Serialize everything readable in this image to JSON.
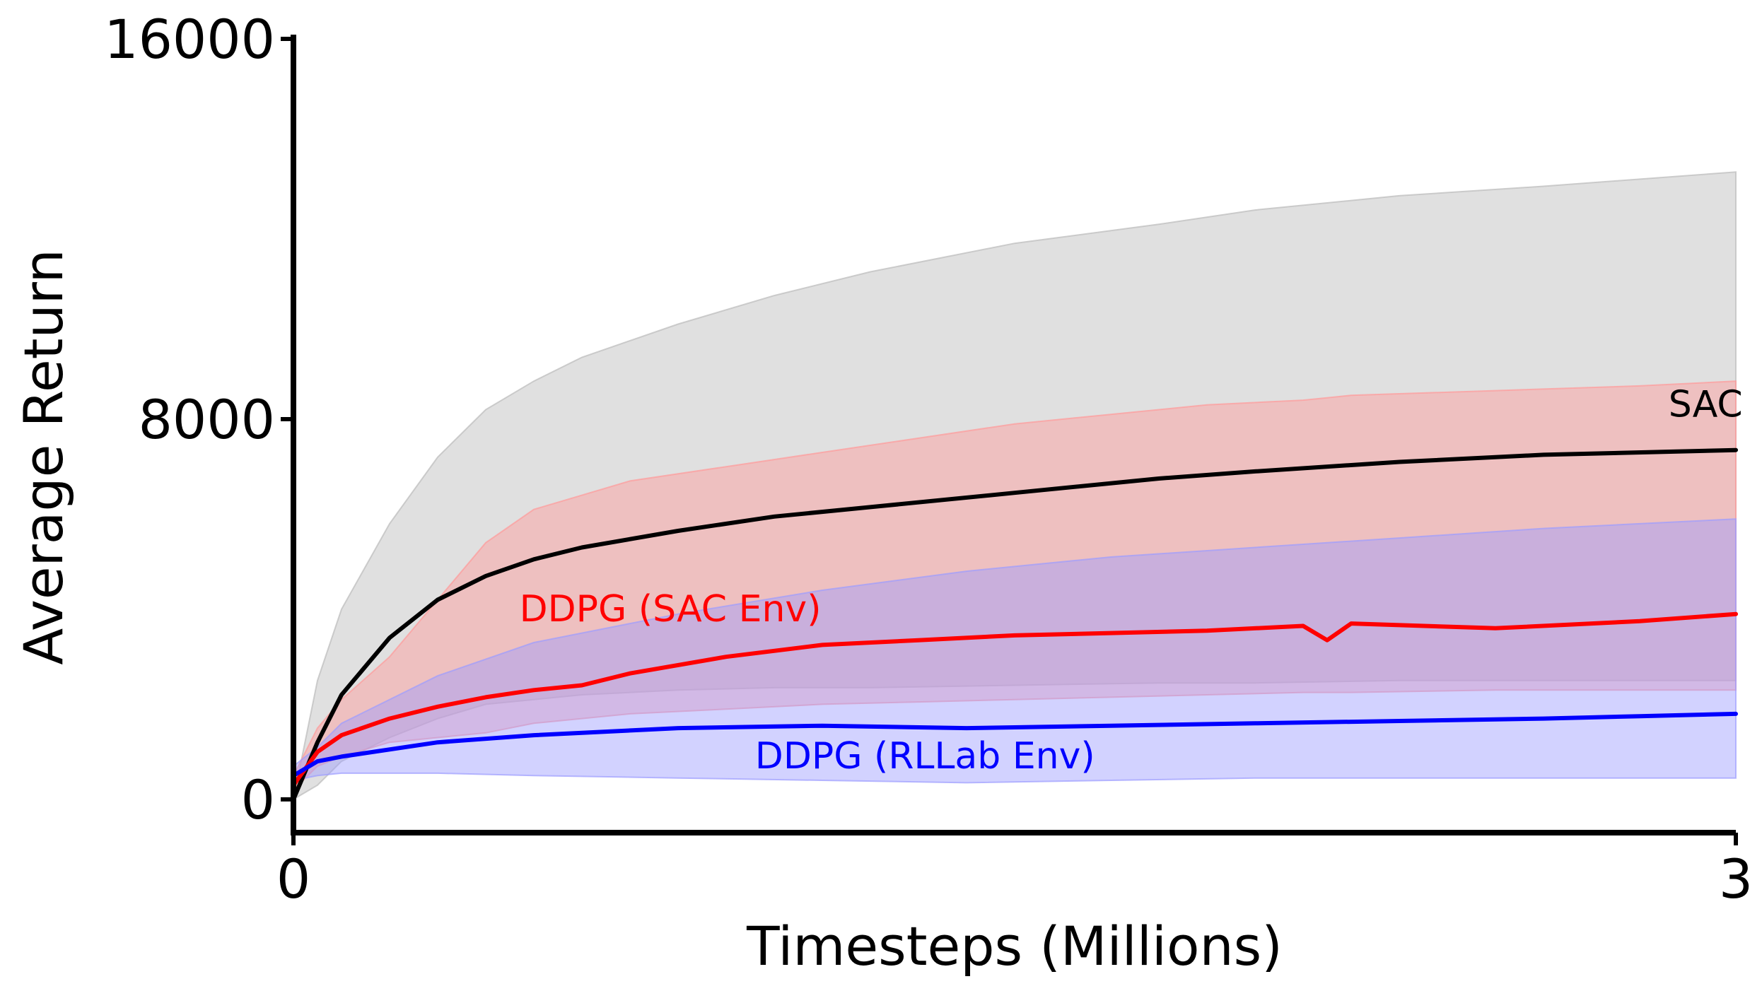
{
  "chart_data": {
    "type": "line",
    "title": "",
    "xlabel": "Timesteps (Millions)",
    "ylabel": "Average Return",
    "xlim": [
      0,
      3
    ],
    "ylim": [
      -700,
      16000
    ],
    "xticks": [
      0,
      3
    ],
    "xtick_labels": [
      "0",
      "3"
    ],
    "yticks": [
      0,
      8000,
      16000
    ],
    "ytick_labels": [
      "0",
      "8000",
      "16000"
    ],
    "grid": false,
    "legend": "inline labels",
    "series": [
      {
        "name": "SAC",
        "color": "#000000",
        "band_color": "#bbbbbb",
        "label_at": [
          2.86,
          8050
        ],
        "x": [
          0,
          0.05,
          0.1,
          0.2,
          0.3,
          0.4,
          0.5,
          0.6,
          0.8,
          1.0,
          1.2,
          1.5,
          1.8,
          2.0,
          2.3,
          2.6,
          3.0
        ],
        "mean": [
          0,
          1200,
          2200,
          3400,
          4200,
          4700,
          5050,
          5300,
          5650,
          5950,
          6150,
          6450,
          6750,
          6900,
          7100,
          7250,
          7350
        ],
        "lower": [
          0,
          300,
          800,
          1300,
          1700,
          2000,
          2100,
          2200,
          2300,
          2350,
          2350,
          2400,
          2450,
          2450,
          2500,
          2500,
          2500
        ],
        "upper": [
          0,
          2500,
          4000,
          5800,
          7200,
          8200,
          8800,
          9300,
          10000,
          10600,
          11100,
          11700,
          12100,
          12400,
          12700,
          12900,
          13200
        ]
      },
      {
        "name": "DDPG (SAC Env)",
        "color": "#ff0000",
        "band_color": "#ff9a9a",
        "label_at": [
          0.47,
          3750
        ],
        "x": [
          0,
          0.05,
          0.1,
          0.2,
          0.3,
          0.4,
          0.5,
          0.6,
          0.7,
          0.9,
          1.1,
          1.3,
          1.5,
          1.7,
          1.9,
          2.1,
          2.15,
          2.2,
          2.5,
          2.8,
          3.0
        ],
        "mean": [
          300,
          1000,
          1350,
          1700,
          1950,
          2150,
          2300,
          2400,
          2650,
          3000,
          3250,
          3350,
          3450,
          3500,
          3550,
          3650,
          3350,
          3700,
          3600,
          3750,
          3900
        ],
        "lower": [
          200,
          700,
          900,
          1200,
          1300,
          1400,
          1600,
          1700,
          1800,
          1900,
          2000,
          2050,
          2100,
          2150,
          2200,
          2250,
          2250,
          2250,
          2300,
          2300,
          2300
        ],
        "upper": [
          500,
          1500,
          2100,
          3000,
          4200,
          5400,
          6100,
          6400,
          6700,
          7000,
          7300,
          7600,
          7900,
          8100,
          8300,
          8400,
          8450,
          8500,
          8600,
          8700,
          8800
        ]
      },
      {
        "name": "DDPG (RLLab Env)",
        "color": "#0000ff",
        "band_color": "#9c9cff",
        "label_at": [
          0.96,
          650
        ],
        "x": [
          0,
          0.05,
          0.1,
          0.3,
          0.5,
          0.8,
          1.1,
          1.4,
          1.7,
          2.0,
          2.3,
          2.6,
          2.8,
          3.0
        ],
        "mean": [
          500,
          800,
          900,
          1200,
          1350,
          1500,
          1550,
          1500,
          1550,
          1600,
          1650,
          1700,
          1750,
          1800
        ],
        "lower": [
          400,
          500,
          550,
          550,
          500,
          450,
          400,
          350,
          400,
          450,
          450,
          450,
          450,
          450
        ],
        "upper": [
          700,
          1100,
          1600,
          2600,
          3300,
          3900,
          4400,
          4800,
          5100,
          5300,
          5500,
          5700,
          5800,
          5900
        ]
      }
    ]
  }
}
